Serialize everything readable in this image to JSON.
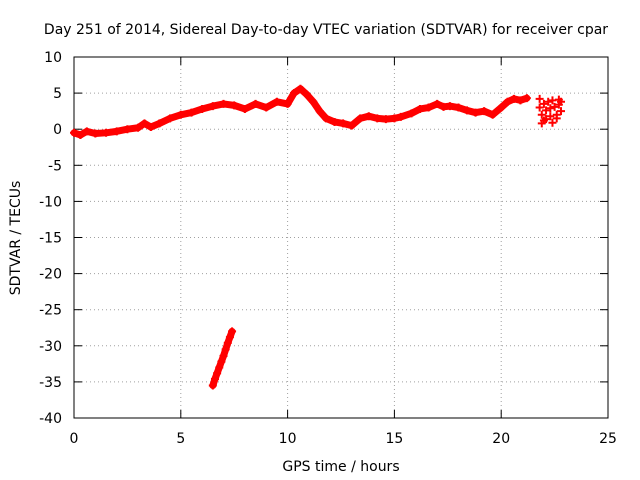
{
  "chart_data": {
    "type": "scatter",
    "title": "Day 251 of 2014, Sidereal Day-to-day VTEC variation (SDTVAR) for receiver cpar",
    "xlabel": "GPS time / hours",
    "ylabel": "SDTVAR / TECUs",
    "xlim": [
      0,
      25
    ],
    "ylim": [
      -40,
      10
    ],
    "xticks": [
      0,
      5,
      10,
      15,
      20,
      25
    ],
    "yticks": [
      10,
      5,
      0,
      -5,
      -10,
      -15,
      -20,
      -25,
      -30,
      -35,
      -40
    ],
    "grid": true,
    "marker": "+",
    "color": "#ff0000",
    "series": [
      {
        "name": "main",
        "x": [
          0.0,
          0.3,
          0.6,
          1.0,
          1.5,
          2.0,
          2.5,
          3.0,
          3.3,
          3.6,
          4.0,
          4.5,
          5.0,
          5.5,
          6.0,
          6.5,
          7.0,
          7.5,
          8.0,
          8.5,
          9.0,
          9.5,
          10.0,
          10.3,
          10.6,
          10.9,
          11.2,
          11.5,
          11.8,
          12.2,
          12.6,
          13.0,
          13.4,
          13.8,
          14.2,
          14.6,
          15.0,
          15.3,
          15.8,
          16.2,
          16.6,
          17.0,
          17.3,
          17.6,
          18.0,
          18.4,
          18.8,
          19.2,
          19.6,
          20.0,
          20.3,
          20.6,
          20.9,
          21.2
        ],
        "y": [
          -0.5,
          -0.8,
          -0.3,
          -0.6,
          -0.5,
          -0.3,
          0.0,
          0.2,
          0.8,
          0.3,
          0.8,
          1.5,
          2.0,
          2.3,
          2.8,
          3.2,
          3.5,
          3.3,
          2.8,
          3.5,
          3.0,
          3.8,
          3.5,
          5.0,
          5.6,
          4.8,
          3.8,
          2.5,
          1.5,
          1.0,
          0.8,
          0.5,
          1.5,
          1.8,
          1.5,
          1.4,
          1.5,
          1.7,
          2.2,
          2.8,
          3.0,
          3.5,
          3.1,
          3.2,
          3.0,
          2.6,
          2.3,
          2.5,
          2.0,
          3.0,
          3.8,
          4.2,
          4.0,
          4.3
        ]
      },
      {
        "name": "gap-block",
        "x": [
          21.8,
          21.8,
          21.9,
          22.0,
          22.0,
          22.1,
          22.2,
          22.3,
          22.3,
          22.4,
          22.5,
          22.6,
          22.7,
          22.8,
          22.8,
          21.9,
          22.1,
          22.4,
          22.6,
          22.7
        ],
        "y": [
          4.2,
          3.0,
          2.0,
          1.2,
          3.5,
          2.6,
          3.8,
          1.8,
          2.9,
          4.0,
          3.1,
          1.5,
          3.4,
          2.5,
          3.8,
          0.8,
          1.4,
          0.9,
          2.0,
          4.1
        ]
      },
      {
        "name": "descending-track",
        "x": [
          6.5,
          6.6,
          6.7,
          6.8,
          6.9,
          7.0,
          7.1,
          7.2,
          7.3,
          7.4
        ],
        "y": [
          -35.5,
          -34.6,
          -33.8,
          -33.0,
          -32.2,
          -31.4,
          -30.5,
          -29.6,
          -28.8,
          -28.0
        ]
      }
    ]
  }
}
